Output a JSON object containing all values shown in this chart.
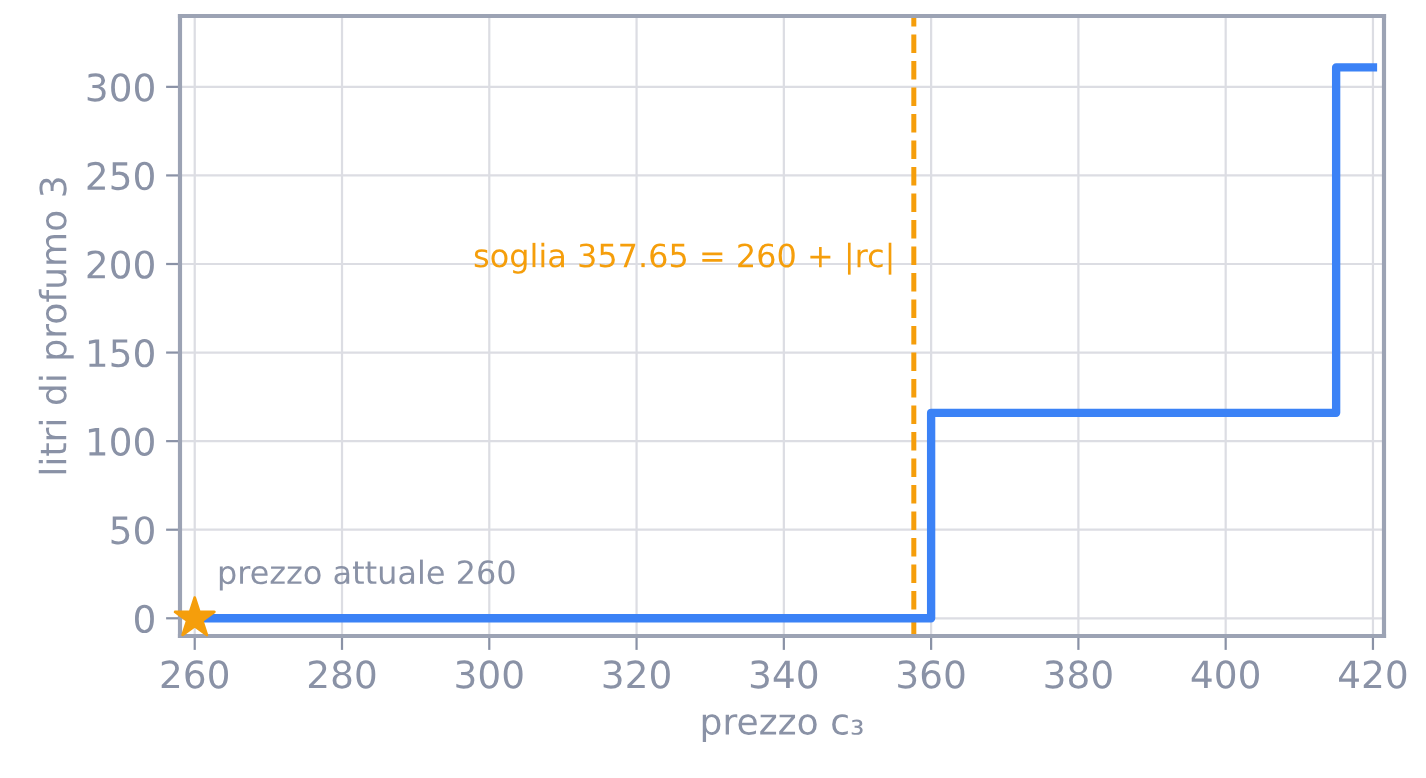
{
  "chart_data": {
    "type": "step",
    "xlabel": "prezzo c₃",
    "ylabel": "litri di profumo 3",
    "series": [
      {
        "color": "#3b82f6",
        "x": [
          260,
          360,
          415,
          420
        ],
        "values": [
          0,
          116,
          311,
          311
        ]
      },
      {
        "type": "scatter",
        "color": "#f59e0b",
        "marker": "star",
        "x": [
          260
        ],
        "values": [
          0
        ]
      }
    ],
    "annotations": [
      {
        "text": "prezzo attuale 260",
        "x": 260,
        "y": 0
      }
    ],
    "ref_lines": [
      {
        "axis": "x",
        "value": 357.65,
        "label": "soglia 357.65 = 260 + |rc|",
        "color": "#f59e0b",
        "line_style": "dashed"
      }
    ],
    "xlim": [
      258,
      421.5
    ],
    "ylim": [
      -10,
      340
    ],
    "xticks": [
      260,
      280,
      300,
      320,
      340,
      360,
      380,
      400,
      420
    ],
    "yticks": [
      0,
      50,
      100,
      150,
      200,
      250,
      300
    ],
    "grid": true,
    "legend": false
  }
}
